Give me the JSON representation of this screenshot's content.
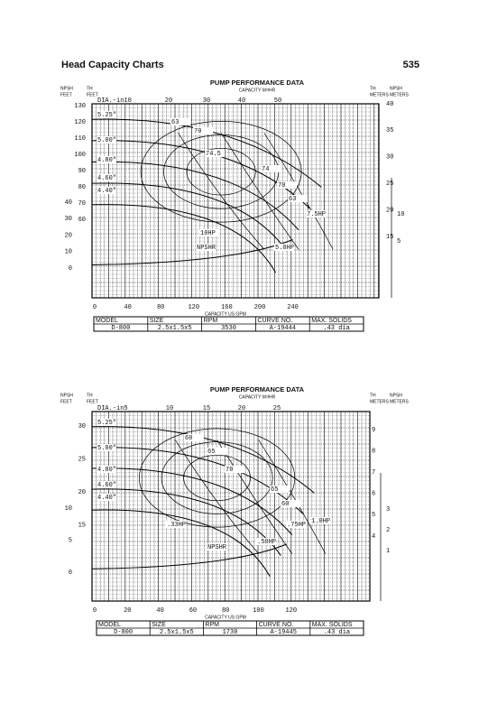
{
  "header": {
    "title": "Head Capacity Charts",
    "page_number": "535"
  },
  "charts": [
    {
      "title": "PUMP PERFORMANCE DATA",
      "capacity_metric": "CAPACITY M³/HR",
      "npsh_feet": [
        "NPSH",
        "FEET"
      ],
      "th_feet": [
        "TH",
        "FEET"
      ],
      "th_meters": [
        "TH",
        "METERS"
      ],
      "npsh_meters": [
        "NPSH",
        "METERS"
      ],
      "dia_label": "DIA.-in10",
      "top_ticks": [
        "20",
        "30",
        "40",
        "50"
      ],
      "th_feet_ticks": [
        "130",
        "120",
        "110",
        "100",
        "90",
        "80",
        "70",
        "60"
      ],
      "npsh_feet_ticks": [
        "40",
        "30",
        "20",
        "10",
        "0"
      ],
      "th_meter_ticks": [
        "40",
        "35",
        "30",
        "25",
        "20",
        "15"
      ],
      "npsh_meter_ticks": [
        "10",
        "5"
      ],
      "bottom_ticks": [
        "0",
        "40",
        "80",
        "120",
        "160",
        "200",
        "240"
      ],
      "capacity_us": "CAPACITY US GPM",
      "curve_labels": [
        "5.25\"",
        "5.00\"",
        "4.80\"",
        "4.60\"",
        "4.40\"",
        "63",
        "70",
        "74.5",
        "74",
        "70",
        "63",
        "7.5HP",
        "10HP",
        "5.0HP",
        "NPSHR"
      ],
      "table": {
        "headers": [
          "MODEL",
          "SIZE",
          "RPM",
          "CURVE NO.",
          "MAX. SOLIDS"
        ],
        "values": [
          "D-800",
          "2.5x1.5x5",
          "3530",
          "A-19444",
          ".43 dia"
        ]
      }
    },
    {
      "title": "PUMP PERFORMANCE DATA",
      "capacity_metric": "CAPACITY M³/HR",
      "npsh_feet": [
        "NPSH",
        "FEET"
      ],
      "th_feet": [
        "TH",
        "FEET"
      ],
      "th_meters": [
        "TH",
        "METERS"
      ],
      "npsh_meters": [
        "NPSH",
        "METERS"
      ],
      "dia_label": "DIA.-in5",
      "top_ticks": [
        "10",
        "15",
        "20",
        "25"
      ],
      "th_feet_ticks": [
        "30",
        "25",
        "20",
        "15"
      ],
      "npsh_feet_ticks": [
        "10",
        "5",
        "0"
      ],
      "th_meter_ticks": [
        "9",
        "8",
        "7",
        "6",
        "5",
        "4"
      ],
      "npsh_meter_ticks": [
        "3",
        "2",
        "1"
      ],
      "bottom_ticks": [
        "0",
        "20",
        "40",
        "60",
        "80",
        "100",
        "120"
      ],
      "capacity_us": "CAPACITY US GPM",
      "curve_labels": [
        "5.25\"",
        "5.00\"",
        "4.80\"",
        "4.60\"",
        "4.40\"",
        "60",
        "65",
        "70",
        "65",
        "60",
        "1.0HP",
        ".75HP",
        ".50HP",
        ".33HP",
        "NPSHR"
      ],
      "table": {
        "headers": [
          "MODEL",
          "SIZE",
          "RPM",
          "CURVE NO.",
          "MAX. SOLIDS"
        ],
        "values": [
          "D-800",
          "2.5x1.5x5",
          "1730",
          "A-19445",
          ".43 dia"
        ]
      }
    }
  ]
}
